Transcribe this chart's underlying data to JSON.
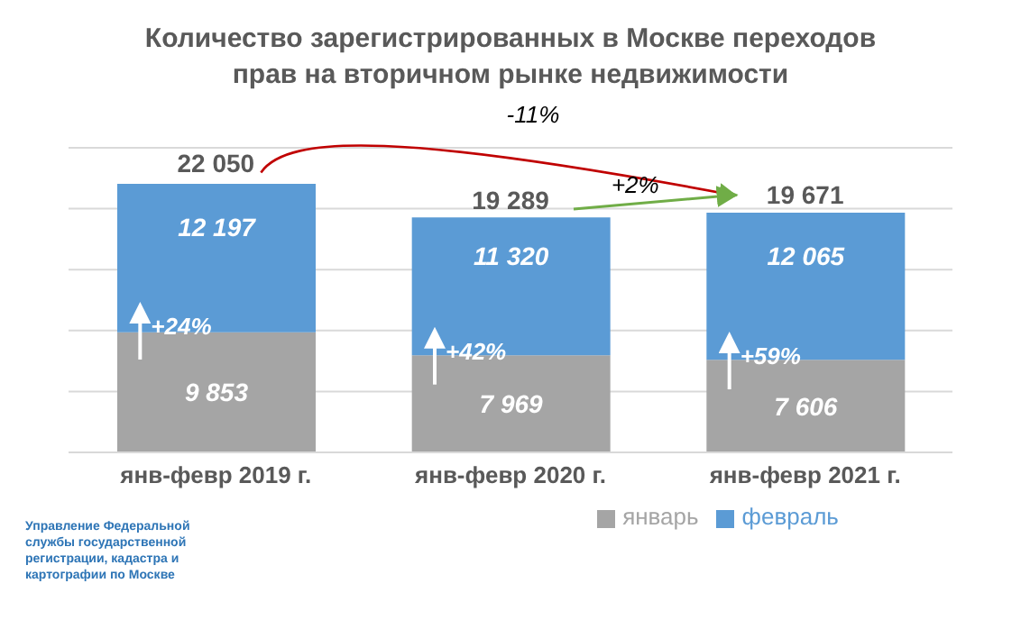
{
  "chart_data": {
    "type": "bar",
    "title": "Количество зарегистрированных в Москве переходов прав на вторичном рынке недвижимости",
    "categories": [
      "янв-февр 2019 г.",
      "янв-февр 2020 г.",
      "янв-февр 2021 г."
    ],
    "stacked": true,
    "series": [
      {
        "name": "январь",
        "color": "#a5a5a5",
        "values": [
          9853,
          7969,
          7606
        ],
        "value_labels": [
          "9 853",
          "7 969",
          "7 606"
        ]
      },
      {
        "name": "февраль",
        "color": "#5b9bd5",
        "values": [
          12197,
          11320,
          12065
        ],
        "value_labels": [
          "12 197",
          "11 320",
          "12 065"
        ]
      }
    ],
    "totals": [
      "22 050",
      "19 289",
      "19 671"
    ],
    "ylim": [
      0,
      25000
    ],
    "yticks": [
      0,
      5000,
      10000,
      15000,
      20000,
      25000
    ],
    "grid": "y",
    "tick_labels": "x",
    "legend": "bottom",
    "annotations": [
      "+24%",
      "+42%",
      "+59%",
      "-11%",
      "+2%",
      "Управление Федеральной службы государственной регистрации, кадастра и картографии по Москве"
    ]
  }
}
